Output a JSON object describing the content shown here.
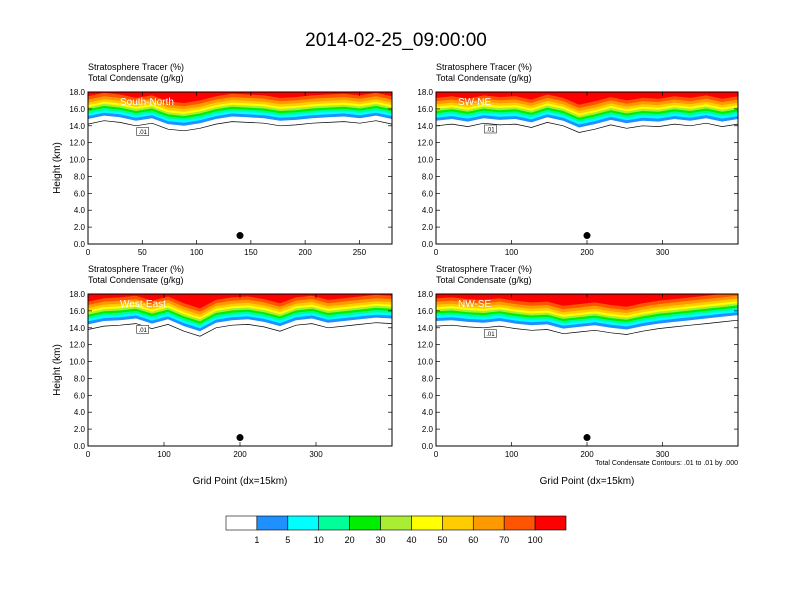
{
  "title": "2014-02-25_09:00:00",
  "colors": [
    "#ffffff",
    "#1e90ff",
    "#00ffff",
    "#00ff99",
    "#00ee00",
    "#aaee33",
    "#ffff00",
    "#ffcc00",
    "#ff9900",
    "#ff5500",
    "#ff0000"
  ],
  "colorbar": {
    "labels": [
      "1",
      "5",
      "10",
      "20",
      "30",
      "40",
      "50",
      "60",
      "70",
      "100"
    ]
  },
  "contour_note": "Total Condensate Contours: .01 to .01 by .000",
  "chart_data": [
    {
      "type": "heatmap",
      "section": "South-North",
      "header_1": "Stratosphere Tracer   (%)",
      "header_2": "Total Condensate   (g/kg)",
      "ylabel": "Height (km)",
      "xlabel": "",
      "x_ticks": [
        "0",
        "50",
        "100",
        "150",
        "200",
        "250"
      ],
      "y_ticks": [
        "0.0",
        "2.0",
        "4.0",
        "6.0",
        "8.0",
        "10.0",
        "12.0",
        "14.0",
        "16.0",
        "18.0"
      ],
      "xlim": [
        0,
        280
      ],
      "ylim": [
        0,
        18
      ],
      "tropopause_km": [
        14.8,
        15.2,
        15.0,
        14.6,
        14.9,
        14.2,
        14.0,
        14.3,
        14.8,
        15.1,
        15.0,
        14.9,
        14.6,
        14.7,
        14.9,
        15.0,
        15.1,
        14.9,
        15.2,
        14.8
      ],
      "contour_label": ".01",
      "marker": {
        "x": 140,
        "y": 1.0
      }
    },
    {
      "type": "heatmap",
      "section": "SW-NE",
      "header_1": "Stratosphere Tracer   (%)",
      "header_2": "Total Condensate   (g/kg)",
      "ylabel": "",
      "xlabel": "",
      "x_ticks": [
        "0",
        "100",
        "200",
        "300"
      ],
      "y_ticks": [
        "0.0",
        "2.0",
        "4.0",
        "6.0",
        "8.0",
        "10.0",
        "12.0",
        "14.0",
        "16.0",
        "18.0"
      ],
      "xlim": [
        0,
        400
      ],
      "ylim": [
        0,
        18
      ],
      "tropopause_km": [
        14.6,
        14.8,
        14.5,
        14.9,
        14.7,
        14.8,
        14.4,
        15.0,
        14.6,
        13.8,
        14.2,
        14.7,
        14.3,
        14.6,
        14.5,
        14.8,
        14.6,
        14.9,
        14.5,
        14.8
      ],
      "contour_label": ".01",
      "marker": {
        "x": 200,
        "y": 1.0
      }
    },
    {
      "type": "heatmap",
      "section": "West-East",
      "header_1": "Stratosphere Tracer   (%)",
      "header_2": "Total Condensate   (g/kg)",
      "ylabel": "Height (km)",
      "xlabel": "Grid Point (dx=15km)",
      "x_ticks": [
        "0",
        "100",
        "200",
        "300"
      ],
      "y_ticks": [
        "0.0",
        "2.0",
        "4.0",
        "6.0",
        "8.0",
        "10.0",
        "12.0",
        "14.0",
        "16.0",
        "18.0"
      ],
      "xlim": [
        0,
        400
      ],
      "ylim": [
        0,
        18
      ],
      "tropopause_km": [
        14.4,
        14.8,
        14.9,
        15.1,
        14.5,
        15.0,
        14.2,
        13.6,
        14.6,
        14.9,
        15.0,
        14.7,
        14.2,
        14.9,
        15.1,
        14.6,
        14.8,
        15.0,
        15.2,
        15.1
      ],
      "contour_label": ".01",
      "marker": {
        "x": 200,
        "y": 1.0
      }
    },
    {
      "type": "heatmap",
      "section": "NW-SE",
      "header_1": "Stratosphere Tracer   (%)",
      "header_2": "Total Condensate   (g/kg)",
      "ylabel": "",
      "xlabel": "Grid Point (dx=15km)",
      "x_ticks": [
        "0",
        "100",
        "200",
        "300"
      ],
      "y_ticks": [
        "0.0",
        "2.0",
        "4.0",
        "6.0",
        "8.0",
        "10.0",
        "12.0",
        "14.0",
        "16.0",
        "18.0"
      ],
      "xlim": [
        0,
        400
      ],
      "ylim": [
        0,
        18
      ],
      "tropopause_km": [
        14.8,
        14.9,
        14.7,
        14.6,
        14.8,
        14.5,
        14.3,
        14.4,
        13.9,
        14.1,
        14.3,
        14.0,
        13.8,
        14.2,
        14.5,
        14.7,
        14.9,
        15.1,
        15.3,
        15.5
      ],
      "contour_label": ".01",
      "marker": {
        "x": 200,
        "y": 1.0
      }
    }
  ]
}
